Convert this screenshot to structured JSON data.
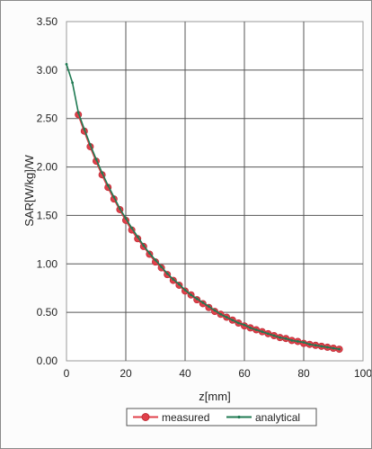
{
  "chart_data": {
    "type": "line",
    "title": "",
    "xlabel": "z[mm]",
    "ylabel": "SAR[W/kg]/W",
    "xlim": [
      0,
      100
    ],
    "ylim": [
      0,
      3.5
    ],
    "x_ticks": [
      0,
      20,
      40,
      60,
      80,
      100
    ],
    "x_tick_labels": [
      "0",
      "20",
      "40",
      "60",
      "80",
      "100"
    ],
    "y_ticks": [
      0,
      0.5,
      1.0,
      1.5,
      2.0,
      2.5,
      3.0,
      3.5
    ],
    "y_tick_labels": [
      "0.00",
      "0.50",
      "1.00",
      "1.50",
      "2.00",
      "2.50",
      "3.00",
      "3.50"
    ],
    "grid": true,
    "legend_position": "bottom-center",
    "series": [
      {
        "name": "measured",
        "color": "#e0404a",
        "marker": "circle",
        "x": [
          4,
          6,
          8,
          10,
          12,
          14,
          16,
          18,
          20,
          22,
          24,
          26,
          28,
          30,
          32,
          34,
          36,
          38,
          40,
          42,
          44,
          46,
          48,
          50,
          52,
          54,
          56,
          58,
          60,
          62,
          64,
          66,
          68,
          70,
          72,
          74,
          76,
          78,
          80,
          82,
          84,
          86,
          88,
          90,
          92
        ],
        "values": [
          2.54,
          2.37,
          2.21,
          2.06,
          1.92,
          1.79,
          1.67,
          1.56,
          1.45,
          1.35,
          1.26,
          1.18,
          1.1,
          1.02,
          0.96,
          0.89,
          0.83,
          0.78,
          0.72,
          0.68,
          0.63,
          0.59,
          0.55,
          0.51,
          0.48,
          0.45,
          0.42,
          0.39,
          0.36,
          0.34,
          0.32,
          0.3,
          0.28,
          0.26,
          0.24,
          0.23,
          0.21,
          0.2,
          0.18,
          0.17,
          0.16,
          0.15,
          0.14,
          0.13,
          0.12
        ]
      },
      {
        "name": "analytical",
        "color": "#1f7a52",
        "marker": "dot",
        "x": [
          0,
          2,
          4,
          6,
          8,
          10,
          12,
          14,
          16,
          18,
          20,
          22,
          24,
          26,
          28,
          30,
          32,
          34,
          36,
          38,
          40,
          42,
          44,
          46,
          48,
          50,
          52,
          54,
          56,
          58,
          60,
          62,
          64,
          66,
          68,
          70,
          72,
          74,
          76,
          78,
          80,
          82,
          84,
          86,
          88,
          90,
          92
        ],
        "values": [
          3.06,
          2.87,
          2.56,
          2.39,
          2.23,
          2.08,
          1.94,
          1.81,
          1.69,
          1.57,
          1.47,
          1.37,
          1.28,
          1.19,
          1.11,
          1.04,
          0.97,
          0.9,
          0.84,
          0.79,
          0.73,
          0.68,
          0.64,
          0.6,
          0.56,
          0.52,
          0.48,
          0.45,
          0.42,
          0.39,
          0.37,
          0.34,
          0.32,
          0.3,
          0.28,
          0.26,
          0.24,
          0.23,
          0.21,
          0.2,
          0.19,
          0.17,
          0.16,
          0.15,
          0.14,
          0.13,
          0.12
        ]
      }
    ]
  }
}
